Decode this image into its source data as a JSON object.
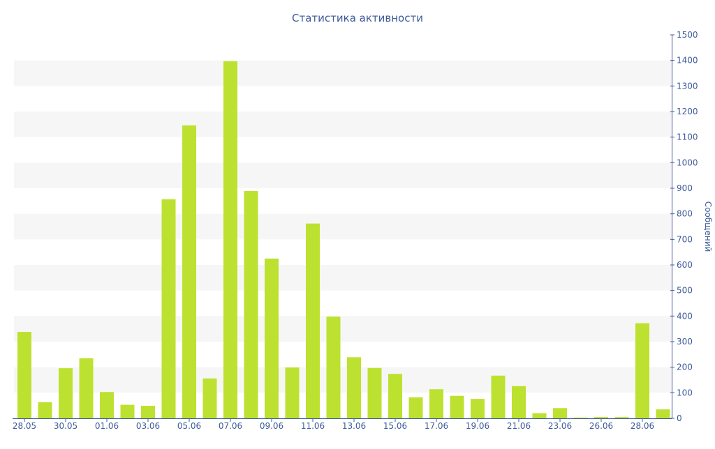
{
  "chart_data": {
    "type": "bar",
    "title": "Статистика активности",
    "xlabel": "",
    "ylabel": "Сообщений",
    "ylim": [
      0,
      1500
    ],
    "y_ticks": [
      0,
      100,
      200,
      300,
      400,
      500,
      600,
      700,
      800,
      900,
      1000,
      1100,
      1200,
      1300,
      1400,
      1500
    ],
    "y_axis_side": "right",
    "grid": "alternating horizontal bands",
    "legend": "none",
    "bar_color": "#bde130",
    "band_color": "#f6f6f6",
    "text_color": "#3d5a99",
    "categories": [
      "28.05",
      "29.05",
      "30.05",
      "31.05",
      "01.06",
      "02.06",
      "03.06",
      "04.06",
      "05.06",
      "06.06",
      "07.06",
      "08.06",
      "09.06",
      "10.06",
      "11.06",
      "12.06",
      "13.06",
      "14.06",
      "15.06",
      "16.06",
      "17.06",
      "18.06",
      "19.06",
      "20.06",
      "21.06",
      "22.06",
      "23.06",
      "24.06",
      "26.06",
      "27.06",
      "28.06",
      "29.06"
    ],
    "x_tick_labels": [
      "28.05",
      "30.05",
      "01.06",
      "03.06",
      "05.06",
      "07.06",
      "09.06",
      "11.06",
      "13.06",
      "15.06",
      "17.06",
      "19.06",
      "21.06",
      "23.06",
      "26.06",
      "28.06"
    ],
    "values": [
      338,
      63,
      196,
      235,
      103,
      53,
      49,
      857,
      1146,
      156,
      1397,
      889,
      625,
      199,
      762,
      398,
      239,
      197,
      174,
      82,
      114,
      88,
      76,
      167,
      126,
      20,
      40,
      3,
      5,
      5,
      372,
      35
    ]
  }
}
